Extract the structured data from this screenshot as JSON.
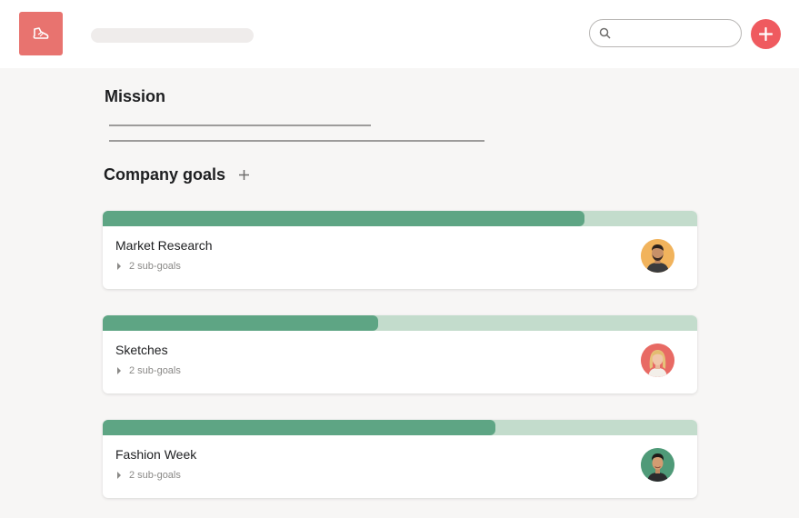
{
  "header": {
    "logo_icon": "shoe-icon",
    "search": {
      "value": "",
      "placeholder": "",
      "icon": "search-icon"
    },
    "add_icon": "plus-icon",
    "accent_color": "#ef5a5f",
    "logo_color": "#e8736f"
  },
  "mission": {
    "title": "Mission"
  },
  "company_goals": {
    "title": "Company goals",
    "add_icon": "plus-icon",
    "progress_color": "#5ea584",
    "progress_track_color": "#c3dccc",
    "goals": [
      {
        "name": "Market Research",
        "subgoals": "2 sub-goals",
        "progress": 0.81,
        "avatar": "owner-avatar"
      },
      {
        "name": "Sketches",
        "subgoals": "2 sub-goals",
        "progress": 0.463,
        "avatar": "owner-avatar"
      },
      {
        "name": "Fashion Week",
        "subgoals": "2 sub-goals",
        "progress": 0.66,
        "avatar": "owner-avatar"
      }
    ]
  }
}
